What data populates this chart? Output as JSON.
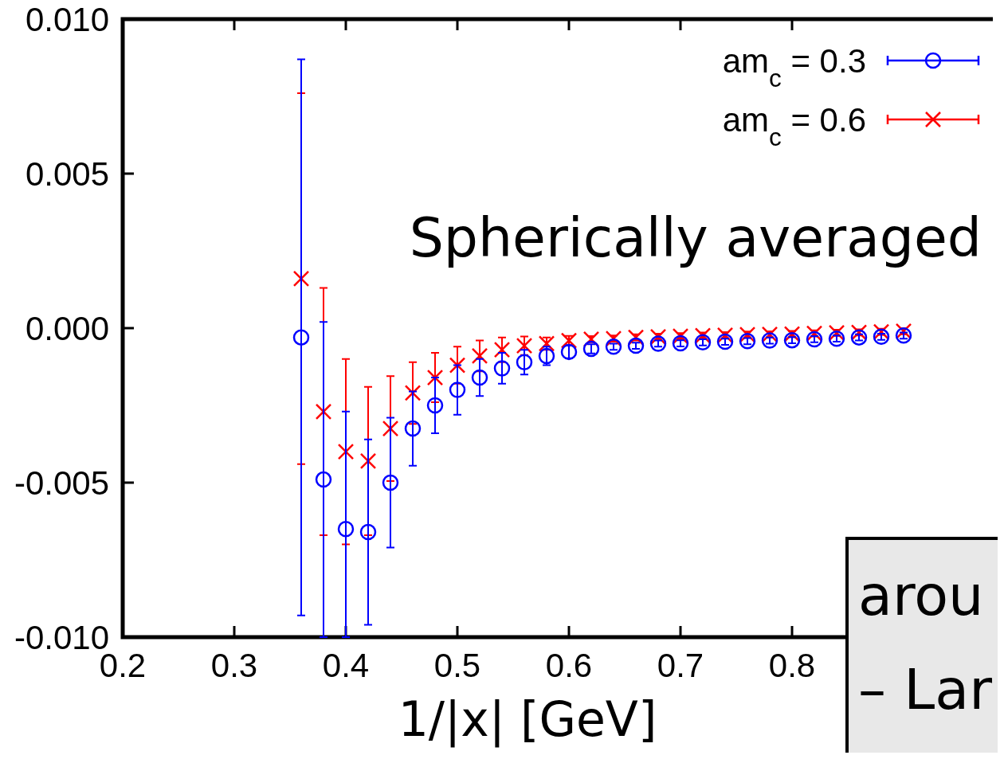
{
  "chart_data": {
    "type": "scatter",
    "xlabel": "1/|x| [GeV]",
    "xlim": [
      0.2,
      0.98
    ],
    "xticks": [
      0.2,
      0.3,
      0.4,
      0.5,
      0.6,
      0.7,
      0.8
    ],
    "ylim": [
      -0.01,
      0.01
    ],
    "yticks": [
      {
        "value": -0.01,
        "label": "-0.010"
      },
      {
        "value": -0.005,
        "label": "-0.005"
      },
      {
        "value": 0,
        "label": "0.000"
      },
      {
        "value": 0.005,
        "label": "0.005"
      },
      {
        "value": 0.01,
        "label": "0.010"
      }
    ],
    "x": [
      0.36,
      0.38,
      0.4,
      0.42,
      0.44,
      0.46,
      0.48,
      0.5,
      0.52,
      0.54,
      0.56,
      0.58,
      0.6,
      0.62,
      0.64,
      0.66,
      0.68,
      0.7,
      0.72,
      0.74,
      0.76,
      0.78,
      0.8,
      0.82,
      0.84,
      0.86,
      0.88,
      0.9
    ],
    "legend": "top right",
    "series": [
      {
        "name": "am$_{c}$ = 0.3",
        "color": "#0000ff",
        "marker": "circle",
        "values": [
          -0.0003,
          -0.0049,
          -0.0065,
          -0.0066,
          -0.005,
          -0.00325,
          -0.0025,
          -0.002,
          -0.0016,
          -0.0013,
          -0.0011,
          -0.0009,
          -0.00077,
          -0.00067,
          -0.0006,
          -0.00057,
          -0.0005,
          -0.00049,
          -0.00046,
          -0.00044,
          -0.00042,
          -0.0004,
          -0.00039,
          -0.00036,
          -0.00034,
          -0.0003,
          -0.00028,
          -0.00024
        ],
        "errors": [
          0.009,
          [
            -0.01,
            0.0002
          ],
          [
            -0.01,
            -0.0027
          ],
          0.003,
          0.0021,
          0.0012,
          0.0009,
          0.0008,
          0.0006,
          0.0005,
          0.0004,
          0.0003,
          0.0002,
          0.00015,
          0.0001,
          0.0001,
          0.0001,
          0.0001,
          0.0001,
          0.0001,
          0.0001,
          0.0001,
          0.0001,
          0.0001,
          0.0001,
          0.0001,
          0.0001,
          0.0001
        ]
      },
      {
        "name": "am$_{c}$ = 0.6",
        "color": "#ff0000",
        "marker": "cross",
        "values": [
          0.0016,
          -0.0027,
          -0.004,
          -0.0043,
          -0.00325,
          -0.0021,
          -0.0016,
          -0.0012,
          -0.0009,
          -0.0007,
          -0.00057,
          -0.0005,
          -0.0004,
          -0.00036,
          -0.00034,
          -0.0003,
          -0.00028,
          -0.00026,
          -0.00024,
          -0.00023,
          -0.00021,
          -0.0002,
          -0.00019,
          -0.00017,
          -0.00015,
          -0.00014,
          -0.00012,
          -0.0001
        ],
        "errors": [
          0.006,
          0.004,
          0.003,
          0.0024,
          0.0017,
          0.001,
          0.0008,
          0.0006,
          0.0005,
          0.0004,
          0.0003,
          0.0002,
          0.00015,
          0.0001,
          0.0001,
          0.0001,
          0.0001,
          0.0001,
          0.0001,
          0.0001,
          0.0001,
          0.0001,
          0.0001,
          0.0001,
          0.0001,
          0.0001,
          0.0001,
          0.0001
        ]
      }
    ],
    "annotations": [
      "Spherically averaged",
      "arou",
      "– Lar"
    ]
  }
}
